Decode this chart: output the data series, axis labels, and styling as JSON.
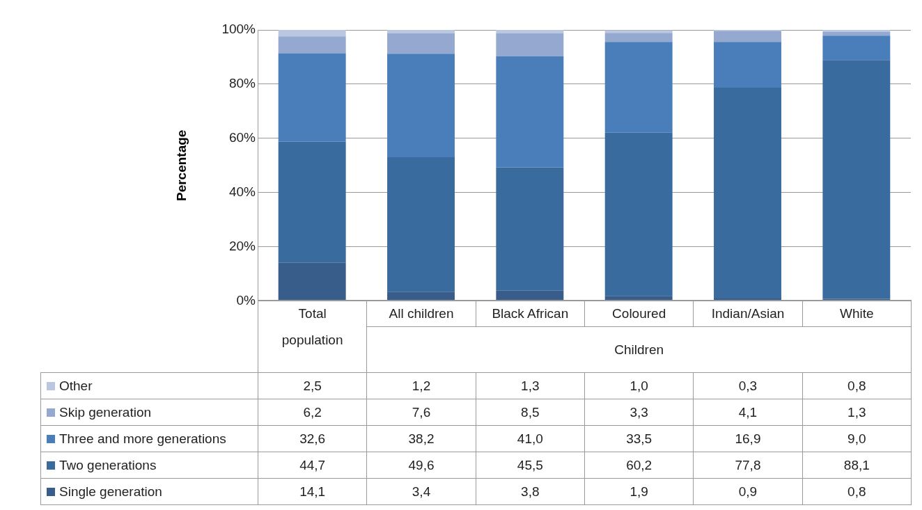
{
  "chart_data": {
    "type": "bar",
    "ylabel": "Percentage",
    "stacked": true,
    "grid": "y",
    "legend": "bottom",
    "categories": [
      "Total population",
      "All children",
      "Black African",
      "Coloured",
      "Indian/Asian",
      "White"
    ],
    "ylim": [
      0,
      100
    ],
    "yticks": [
      {
        "value": 0,
        "label": "0%"
      },
      {
        "value": 20,
        "label": "20%"
      },
      {
        "value": 40,
        "label": "40%"
      },
      {
        "value": 60,
        "label": "60%"
      },
      {
        "value": 80,
        "label": "80%"
      },
      {
        "value": 100,
        "label": "100%"
      }
    ],
    "annotations": [
      "Children"
    ],
    "series": [
      {
        "name": "Single generation",
        "color": "#385d8a",
        "values": [
          14.1,
          3.4,
          3.8,
          1.9,
          0.9,
          0.8
        ],
        "value_labels": [
          "14,1",
          "3,4",
          "3,8",
          "1,9",
          "0,9",
          "0,8"
        ]
      },
      {
        "name": "Two generations",
        "color": "#3a6b9e",
        "values": [
          44.7,
          49.6,
          45.5,
          60.2,
          77.8,
          88.1
        ],
        "value_labels": [
          "44,7",
          "49,6",
          "45,5",
          "60,2",
          "77,8",
          "88,1"
        ]
      },
      {
        "name": "Three and more generations",
        "color": "#4a7ebb",
        "values": [
          32.6,
          38.2,
          41.0,
          33.5,
          16.9,
          9.0
        ],
        "value_labels": [
          "32,6",
          "38,2",
          "41,0",
          "33,5",
          "16,9",
          "9,0"
        ]
      },
      {
        "name": "Skip generation",
        "color": "#95a8cf",
        "values": [
          6.2,
          7.6,
          8.5,
          3.3,
          4.1,
          1.3
        ],
        "value_labels": [
          "6,2",
          "7,6",
          "8,5",
          "3,3",
          "4,1",
          "1,3"
        ]
      },
      {
        "name": "Other",
        "color": "#b9c7e0",
        "values": [
          2.5,
          1.2,
          1.3,
          1.0,
          0.3,
          0.8
        ],
        "value_labels": [
          "2,5",
          "1,2",
          "1,3",
          "1,0",
          "0,3",
          "0,8"
        ]
      }
    ]
  }
}
